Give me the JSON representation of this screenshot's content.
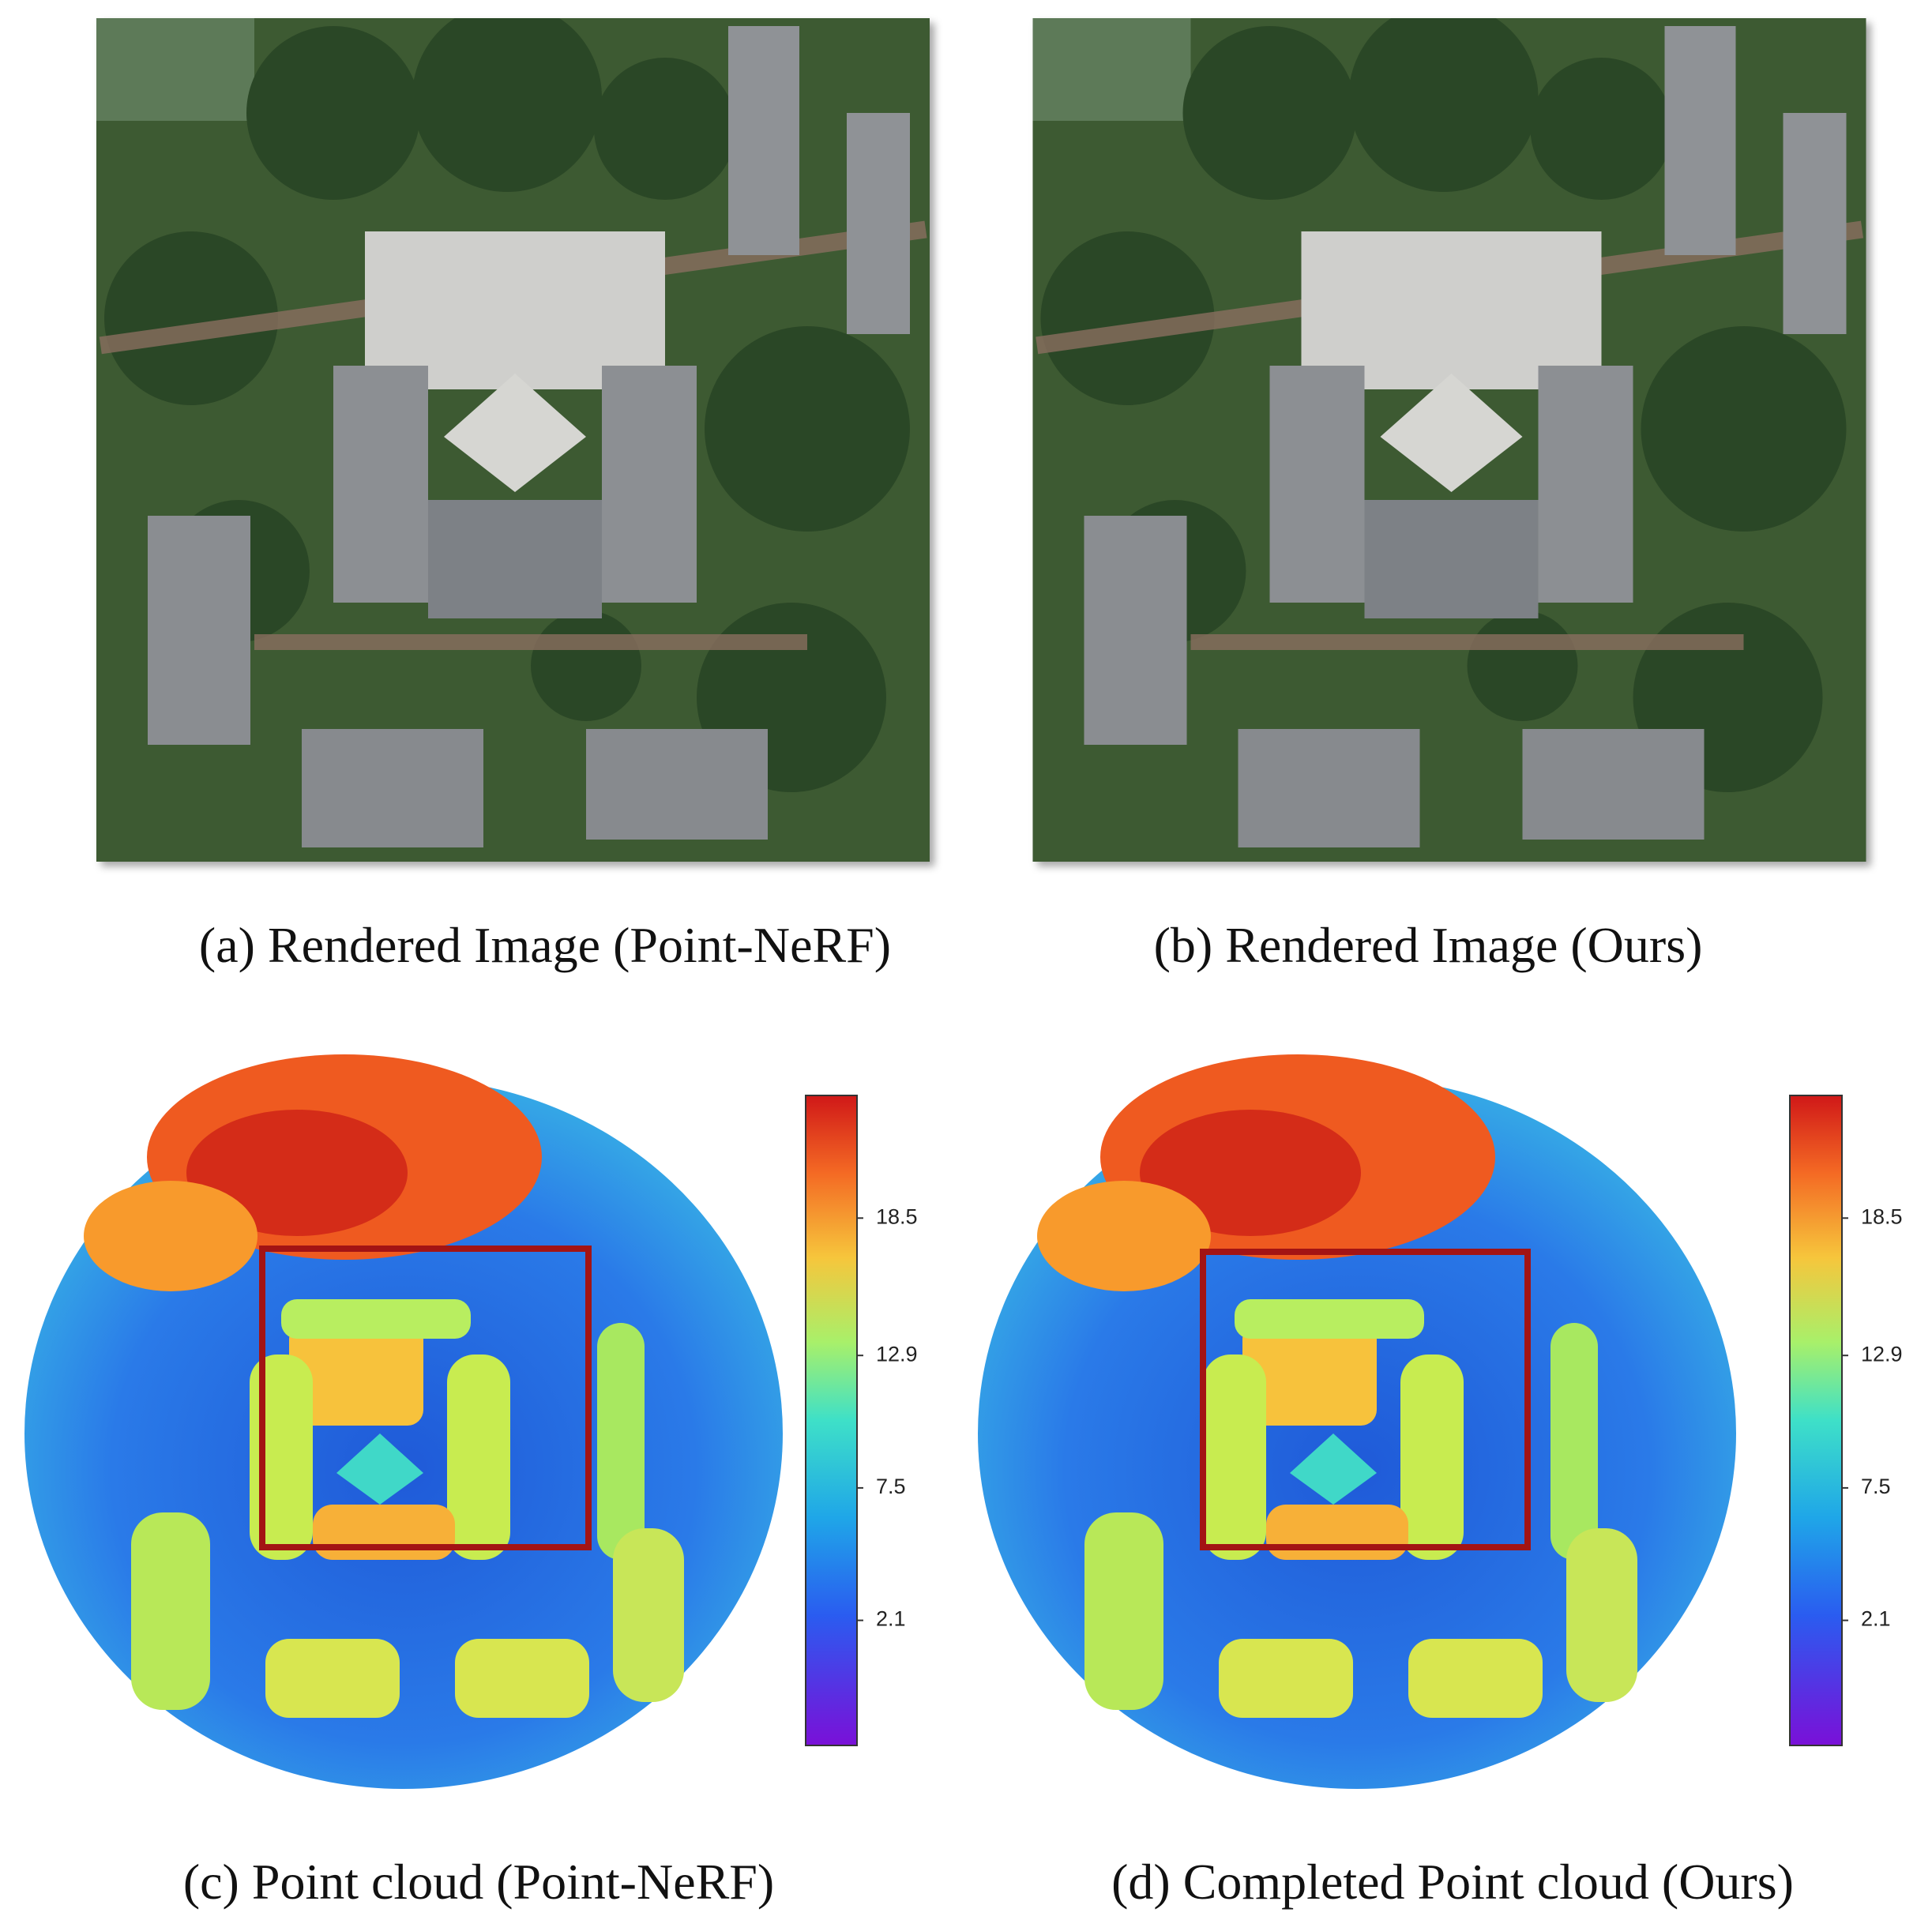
{
  "panels": [
    {
      "caption": "(a) Rendered Image (Point-NeRF)"
    },
    {
      "caption": "(b) Rendered Image (Ours)"
    },
    {
      "caption": "(c) Point cloud (Point-NeRF)"
    },
    {
      "caption": "(d) Completed Point cloud (Ours)"
    }
  ],
  "colorbars": [
    {
      "lim": [
        -3,
        23.5
      ],
      "ticks": [
        2.1,
        7.5,
        12.9,
        18.5
      ]
    },
    {
      "lim": [
        -3,
        23.5
      ],
      "ticks": [
        2.1,
        7.5,
        12.9,
        18.5
      ]
    }
  ]
}
